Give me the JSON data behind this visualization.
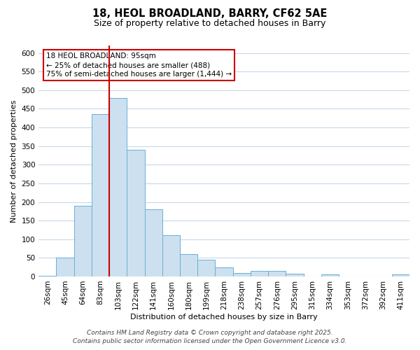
{
  "title_line1": "18, HEOL BROADLAND, BARRY, CF62 5AE",
  "title_line2": "Size of property relative to detached houses in Barry",
  "xlabel": "Distribution of detached houses by size in Barry",
  "ylabel": "Number of detached properties",
  "bar_labels": [
    "26sqm",
    "45sqm",
    "64sqm",
    "83sqm",
    "103sqm",
    "122sqm",
    "141sqm",
    "160sqm",
    "180sqm",
    "199sqm",
    "218sqm",
    "238sqm",
    "257sqm",
    "276sqm",
    "295sqm",
    "315sqm",
    "334sqm",
    "353sqm",
    "372sqm",
    "392sqm",
    "411sqm"
  ],
  "bar_values": [
    2,
    50,
    190,
    435,
    480,
    340,
    180,
    110,
    60,
    45,
    25,
    10,
    15,
    15,
    8,
    0,
    5,
    0,
    0,
    0,
    5
  ],
  "bar_color": "#cce0f0",
  "bar_edge_color": "#6aafd6",
  "ylim": [
    0,
    620
  ],
  "yticks": [
    0,
    50,
    100,
    150,
    200,
    250,
    300,
    350,
    400,
    450,
    500,
    550,
    600
  ],
  "vline_index": 3.5,
  "vline_color": "#cc0000",
  "annotation_title": "18 HEOL BROADLAND: 95sqm",
  "annotation_line1": "← 25% of detached houses are smaller (488)",
  "annotation_line2": "75% of semi-detached houses are larger (1,444) →",
  "annotation_box_facecolor": "#ffffff",
  "annotation_box_edgecolor": "#cc0000",
  "footer_line1": "Contains HM Land Registry data © Crown copyright and database right 2025.",
  "footer_line2": "Contains public sector information licensed under the Open Government Licence v3.0.",
  "background_color": "#ffffff",
  "grid_color": "#c8d8ea",
  "title1_fontsize": 10.5,
  "title2_fontsize": 9,
  "axis_label_fontsize": 8,
  "tick_fontsize": 7.5,
  "annotation_fontsize": 7.5,
  "footer_fontsize": 6.5
}
